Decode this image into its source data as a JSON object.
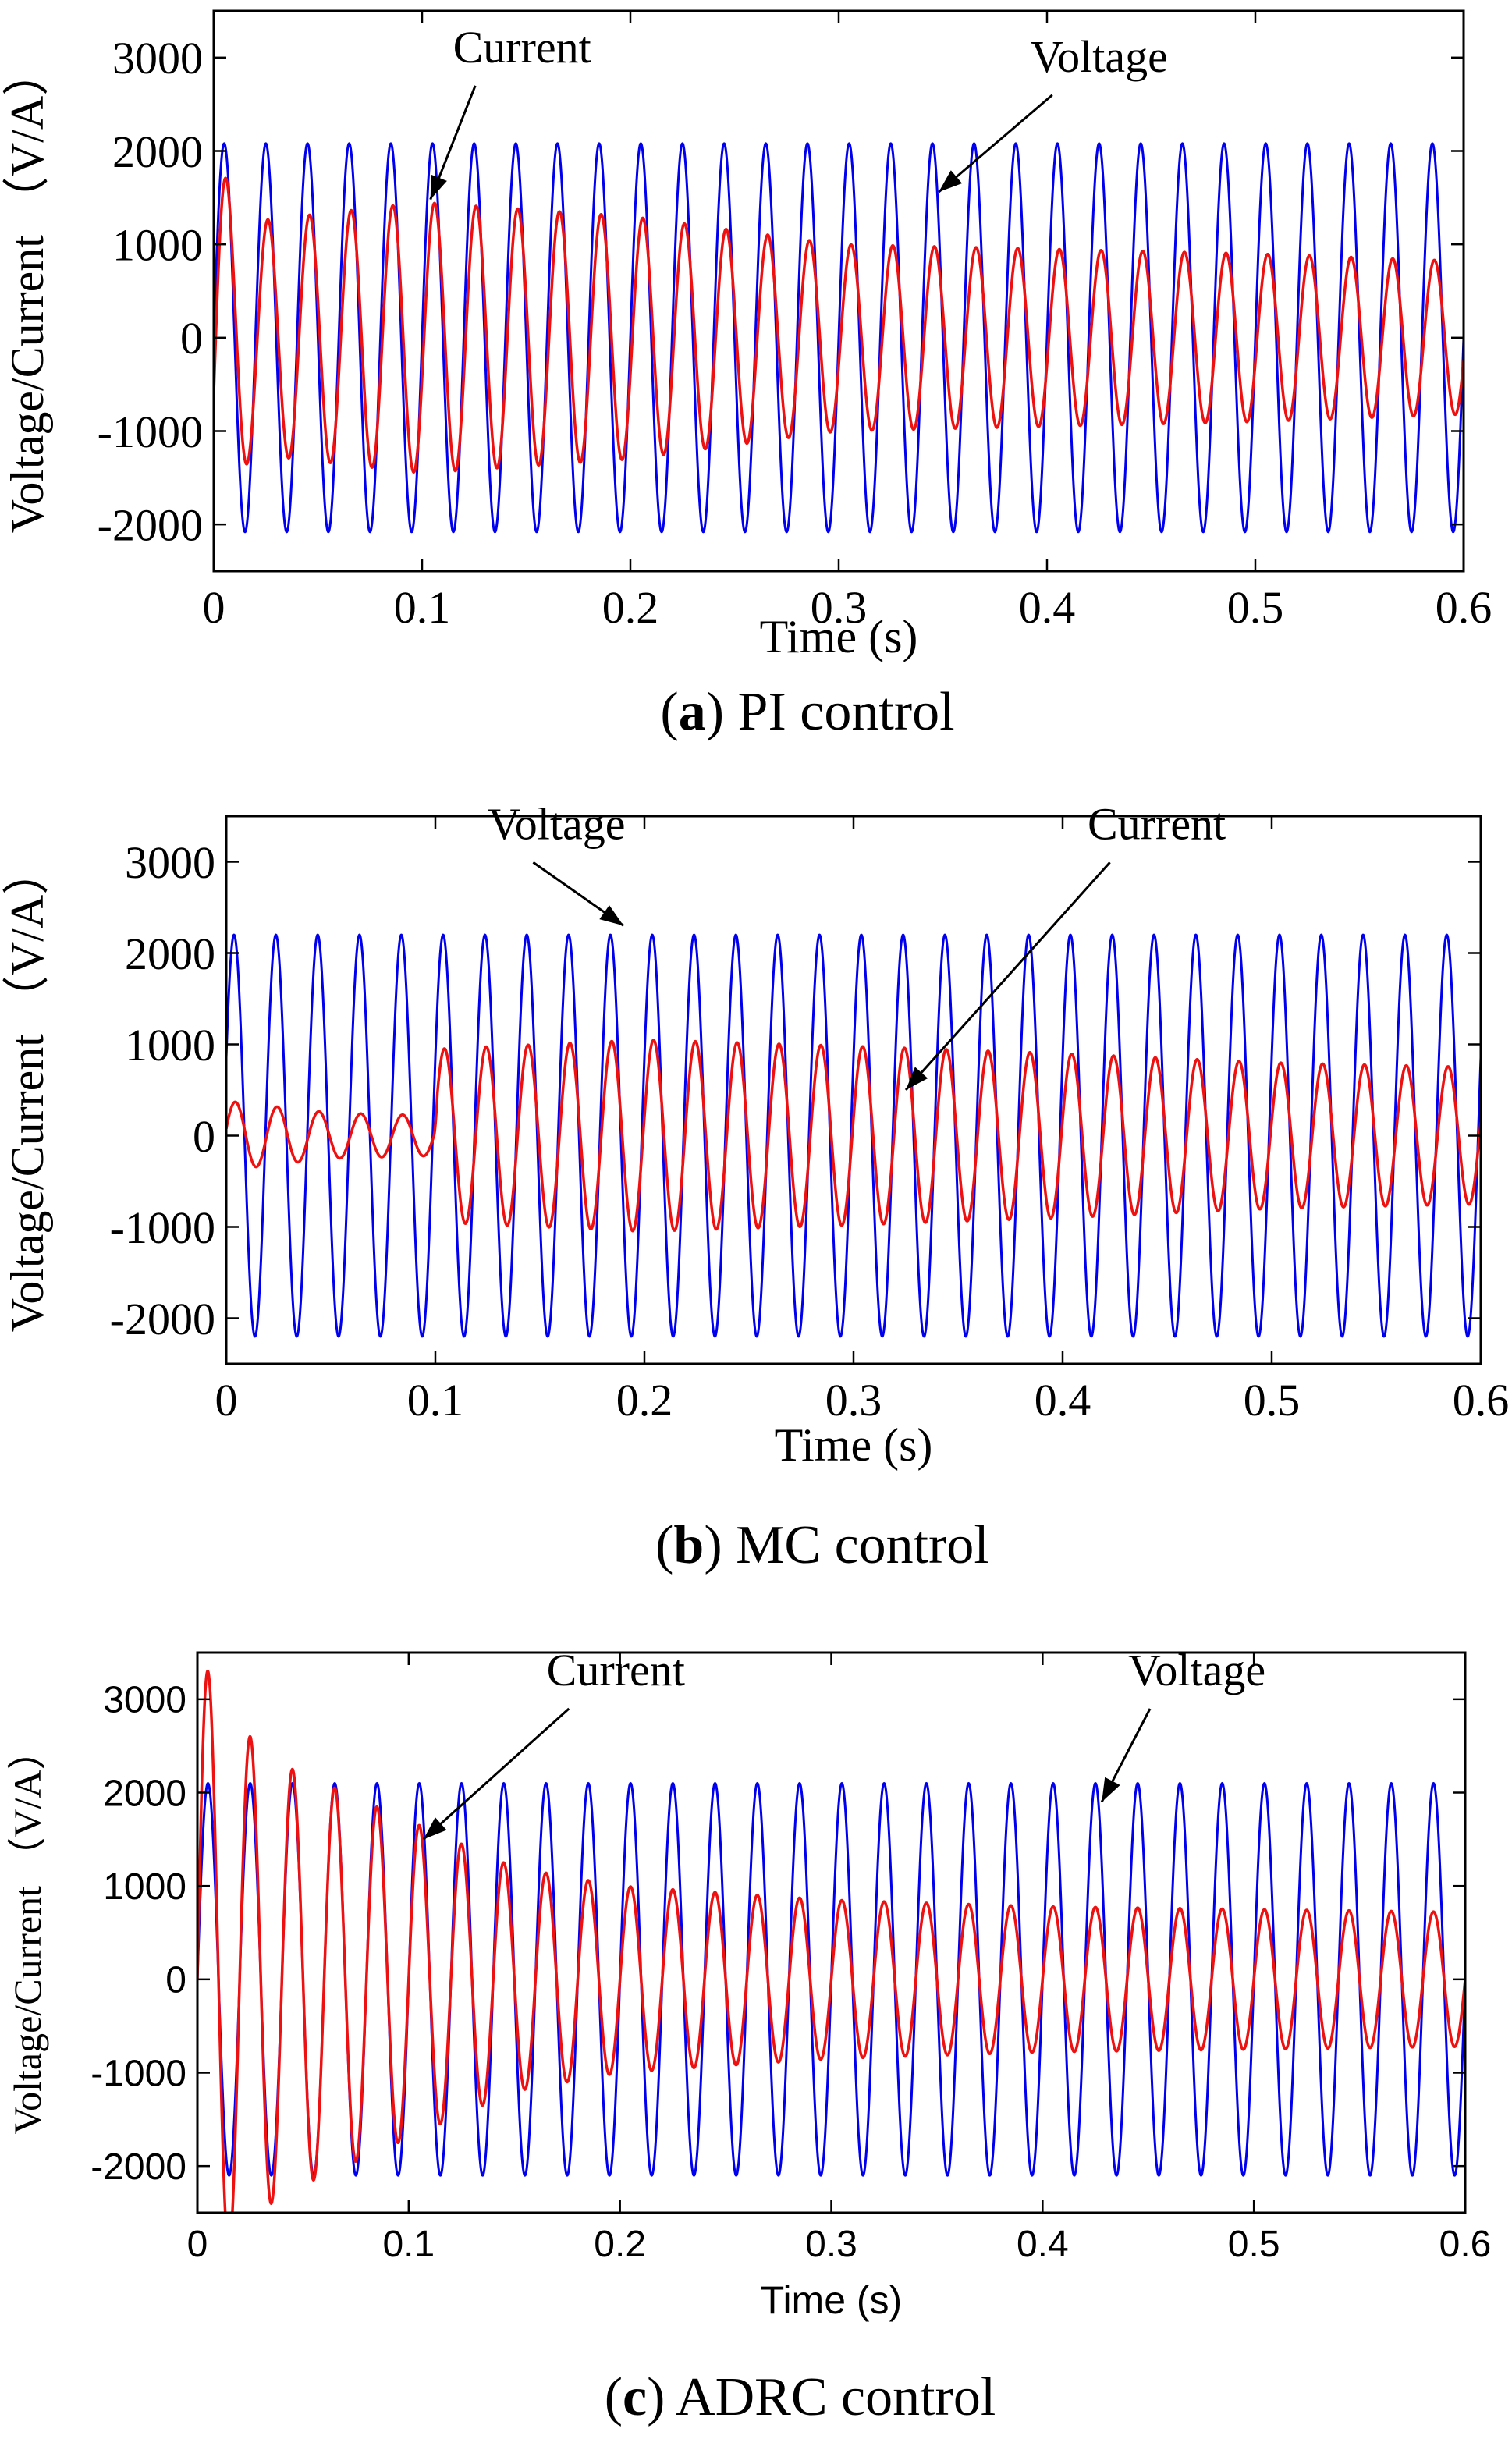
{
  "figure": {
    "colors": {
      "voltage": "#0000ee",
      "current": "#ee1111",
      "axis": "#000000"
    }
  },
  "chart_data": [
    {
      "id": "a",
      "type": "line",
      "caption_letter": "a",
      "caption_text": "PI control",
      "xlabel": "Time (s)",
      "ylabel": "Voltage/Current （V/A）",
      "xlim": [
        0,
        0.6
      ],
      "ylim": [
        -2500,
        3500
      ],
      "xticks": [
        0,
        0.1,
        0.2,
        0.3,
        0.4,
        0.5,
        0.6
      ],
      "xtick_labels": [
        "0",
        "0.1",
        "0.2",
        "0.3",
        "0.4",
        "0.5",
        "0.6"
      ],
      "yticks": [
        -2000,
        -1000,
        0,
        1000,
        2000,
        3000
      ],
      "ytick_labels": [
        "-2000",
        "-1000",
        "0",
        "1000",
        "2000",
        "3000"
      ],
      "frequency_hz": 50,
      "series": [
        {
          "name": "Voltage",
          "color": "#0000ee",
          "phase": 0,
          "amplitude_profile": [
            [
              0,
              2080
            ],
            [
              0.6,
              2080
            ]
          ]
        },
        {
          "name": "Current",
          "color": "#ee1111",
          "phase": -0.3,
          "amplitude_profile": [
            [
              0,
              2000
            ],
            [
              0.01,
              1500
            ],
            [
              0.02,
              1250
            ],
            [
              0.1,
              1450
            ],
            [
              0.2,
              1300
            ],
            [
              0.3,
              1000
            ],
            [
              0.4,
              950
            ],
            [
              0.5,
              900
            ],
            [
              0.6,
              820
            ]
          ]
        }
      ],
      "annotations": [
        {
          "text": "Current",
          "text_at": [
            0.148,
            2950
          ],
          "arrow_to": [
            0.104,
            1480
          ]
        },
        {
          "text": "Voltage",
          "text_at": [
            0.425,
            2850
          ],
          "arrow_to": [
            0.348,
            1560
          ]
        }
      ]
    },
    {
      "id": "b",
      "type": "line",
      "caption_letter": "b",
      "caption_text": "MC control",
      "xlabel": "Time (s)",
      "ylabel": "Voltage/Current （V/A）",
      "xlim": [
        0,
        0.6
      ],
      "ylim": [
        -2500,
        3500
      ],
      "xticks": [
        0,
        0.1,
        0.2,
        0.3,
        0.4,
        0.5,
        0.6
      ],
      "xtick_labels": [
        "0",
        "0.1",
        "0.2",
        "0.3",
        "0.4",
        "0.5",
        "0.6"
      ],
      "yticks": [
        -2000,
        -1000,
        0,
        1000,
        2000,
        3000
      ],
      "ytick_labels": [
        "-2000",
        "-1000",
        "0",
        "1000",
        "2000",
        "3000"
      ],
      "frequency_hz": 50,
      "series": [
        {
          "name": "Voltage",
          "color": "#0000ee",
          "phase": 0.4,
          "amplitude_profile": [
            [
              0,
              2200
            ],
            [
              0.6,
              2200
            ]
          ]
        },
        {
          "name": "Current",
          "color": "#ee1111",
          "phase": 0.2,
          "amplitude_profile": [
            [
              0,
              380
            ],
            [
              0.05,
              250
            ],
            [
              0.099,
              220
            ],
            [
              0.101,
              950
            ],
            [
              0.2,
              1050
            ],
            [
              0.3,
              980
            ],
            [
              0.4,
              900
            ],
            [
              0.5,
              800
            ],
            [
              0.6,
              750
            ]
          ]
        }
      ],
      "annotations": [
        {
          "text": "Voltage",
          "text_at": [
            0.158,
            3250
          ],
          "arrow_to": [
            0.19,
            2300
          ]
        },
        {
          "text": "Current",
          "text_at": [
            0.445,
            3250
          ],
          "arrow_to": [
            0.325,
            500
          ]
        }
      ]
    },
    {
      "id": "c",
      "type": "line",
      "caption_letter": "c",
      "caption_text": "ADRC control",
      "xlabel": "Time (s)",
      "ylabel": "Voltage/Current （V/A）",
      "xlim": [
        0,
        0.6
      ],
      "ylim": [
        -2500,
        3500
      ],
      "xticks": [
        0,
        0.1,
        0.2,
        0.3,
        0.4,
        0.5,
        0.6
      ],
      "xtick_labels": [
        "0",
        "0.1",
        "0.2",
        "0.3",
        "0.4",
        "0.5",
        "0.6"
      ],
      "yticks": [
        -2000,
        -1000,
        0,
        1000,
        2000,
        3000
      ],
      "ytick_labels": [
        "-2000",
        "-1000",
        "0",
        "1000",
        "2000",
        "3000"
      ],
      "frequency_hz": 50,
      "series": [
        {
          "name": "Voltage",
          "color": "#0000ee",
          "phase": 0,
          "amplitude_profile": [
            [
              0,
              2100
            ],
            [
              0.6,
              2100
            ]
          ]
        },
        {
          "name": "Current",
          "color": "#ee1111",
          "phase": 0,
          "amplitude_profile": [
            [
              0,
              3500
            ],
            [
              0.02,
              2700
            ],
            [
              0.04,
              2300
            ],
            [
              0.06,
              2100
            ],
            [
              0.1,
              1700
            ],
            [
              0.15,
              1200
            ],
            [
              0.2,
              1000
            ],
            [
              0.3,
              850
            ],
            [
              0.4,
              780
            ],
            [
              0.6,
              720
            ]
          ]
        }
      ],
      "annotations": [
        {
          "text": "Current",
          "text_at": [
            0.198,
            3150
          ],
          "arrow_to": [
            0.107,
            1500
          ]
        },
        {
          "text": "Voltage",
          "text_at": [
            0.473,
            3150
          ],
          "arrow_to": [
            0.428,
            1900
          ]
        }
      ]
    }
  ]
}
